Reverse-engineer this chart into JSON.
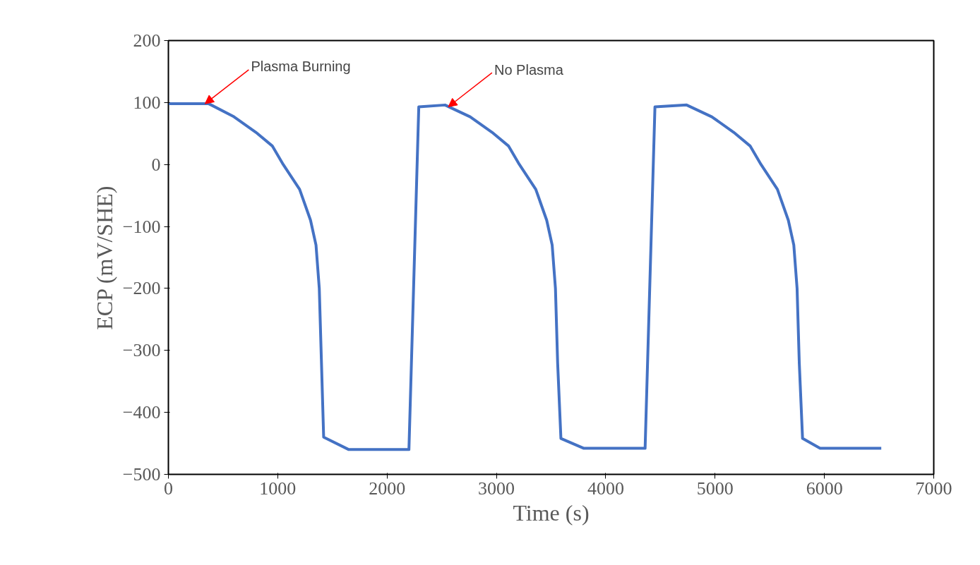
{
  "chart_data": {
    "type": "line",
    "xlabel": "Time (s)",
    "ylabel": "ECP (mV/SHE)",
    "x": [
      0,
      370,
      600,
      800,
      950,
      1050,
      1200,
      1300,
      1350,
      1380,
      1400,
      1420,
      1650,
      2200,
      2290,
      2530,
      2760,
      2960,
      3110,
      3210,
      3360,
      3460,
      3510,
      3540,
      3560,
      3590,
      3800,
      4360,
      4450,
      4740,
      4970,
      5170,
      5320,
      5420,
      5570,
      5670,
      5720,
      5750,
      5770,
      5800,
      5960,
      6520
    ],
    "series": [
      {
        "color": "#4472c4",
        "values": [
          98,
          98,
          77,
          52,
          30,
          0,
          -40,
          -90,
          -130,
          -200,
          -320,
          -440,
          -460,
          -460,
          93,
          96,
          77,
          52,
          30,
          0,
          -40,
          -90,
          -130,
          -200,
          -320,
          -442,
          -458,
          -458,
          93,
          96,
          77,
          52,
          30,
          0,
          -40,
          -90,
          -130,
          -200,
          -320,
          -442,
          -458,
          -458
        ]
      }
    ],
    "xlim": [
      0,
      7000
    ],
    "xticks": [
      0,
      1000,
      2000,
      3000,
      4000,
      5000,
      6000,
      7000
    ],
    "ylim": [
      -500,
      200
    ],
    "yticks": [
      -500,
      -400,
      -300,
      -200,
      -100,
      0,
      100,
      200
    ],
    "grid": false,
    "marker": "none",
    "line_style": "solid",
    "annotations": [
      {
        "text": "Plasma Burning",
        "x": 335,
        "y": 98
      },
      {
        "text": "No Plasma",
        "x": 2560,
        "y": 93
      }
    ]
  }
}
